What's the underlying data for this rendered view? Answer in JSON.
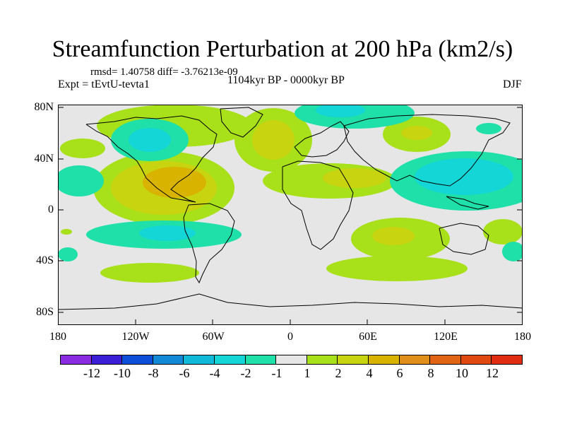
{
  "title": "Streamfunction Perturbation at 200 hPa (km2/s)",
  "stats": "rmsd= 1.40758 diff= -3.76213e-09",
  "experiment": "Expt = tEvtU-tevta1",
  "period": "1104kyr BP - 0000kyr BP",
  "season": "DJF",
  "y_ticks": [
    "80N",
    "40N",
    "0",
    "40S",
    "80S"
  ],
  "x_ticks": [
    "180",
    "120W",
    "60W",
    "0",
    "60E",
    "120E",
    "180"
  ],
  "colorbar": {
    "colors": [
      "#8a2be2",
      "#3a1fd6",
      "#0d4fd8",
      "#1289d6",
      "#10b9d8",
      "#14d6d6",
      "#1ee0a8",
      "#e6e6e6",
      "#a8e01a",
      "#c8d410",
      "#d8b400",
      "#e0901a",
      "#e06414",
      "#e04a10",
      "#e02d12"
    ],
    "labels": [
      "-12",
      "-10",
      "-8",
      "-6",
      "-4",
      "-2",
      "-1",
      "1",
      "2",
      "4",
      "6",
      "8",
      "10",
      "12"
    ]
  },
  "map_colors": {
    "background": "#e6e6e6",
    "pos1": "#a8e01a",
    "pos2": "#c8d410",
    "pos3": "#d8b400",
    "neg1": "#1ee0a8",
    "neg2": "#14d6d6"
  }
}
